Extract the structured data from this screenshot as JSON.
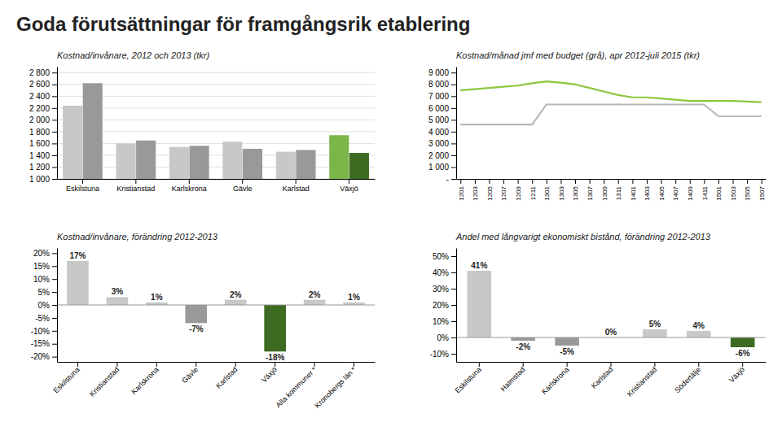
{
  "title": "Goda förutsättningar för framgångsrik etablering",
  "chart_data": [
    {
      "type": "bar",
      "title": "Kostnad/invånare, 2012 och 2013 (tkr)",
      "categories": [
        "Eskilstuna",
        "Kristianstad",
        "Karlskrona",
        "Gävle",
        "Karlstad",
        "Växjö"
      ],
      "series": [
        {
          "colors": [
            "#c8c8c8",
            "#c8c8c8",
            "#c8c8c8",
            "#c8c8c8",
            "#c8c8c8",
            "#7ab648"
          ],
          "values": [
            2240,
            1600,
            1540,
            1630,
            1460,
            1740
          ]
        },
        {
          "colors": [
            "#999999",
            "#999999",
            "#999999",
            "#999999",
            "#999999",
            "#3d6b22"
          ],
          "values": [
            2620,
            1650,
            1560,
            1510,
            1490,
            1440
          ]
        }
      ],
      "ylim": [
        1000,
        2900
      ],
      "yticks": [
        {
          "value": 1000,
          "label": "1 000"
        },
        {
          "value": 1200,
          "label": "1 200"
        },
        {
          "value": 1400,
          "label": "1 400"
        },
        {
          "value": 1600,
          "label": "1 600"
        },
        {
          "value": 1800,
          "label": "1 800"
        },
        {
          "value": 2000,
          "label": "2 000"
        },
        {
          "value": 2200,
          "label": "2 200"
        },
        {
          "value": 2400,
          "label": "2 400"
        },
        {
          "value": 2600,
          "label": "2 600"
        },
        {
          "value": 2800,
          "label": "2 800"
        }
      ],
      "grid": true
    },
    {
      "type": "line",
      "title": "Kostnad/månad jmf med budget (grå), apr 2012-juli 2015 (tkr)",
      "categories": [
        "1201",
        "1203",
        "1205",
        "1207",
        "1209",
        "1211",
        "1301",
        "1303",
        "1305",
        "1307",
        "1309",
        "1311",
        "1401",
        "1403",
        "1405",
        "1407",
        "1409",
        "1411",
        "1501",
        "1503",
        "1505",
        "1507"
      ],
      "series": [
        {
          "color": "#8dc63f",
          "values": [
            7500,
            7600,
            7700,
            7800,
            7900,
            8100,
            8250,
            8150,
            8000,
            7700,
            7400,
            7100,
            6900,
            6900,
            6800,
            6700,
            6600,
            6600,
            6600,
            6600,
            6550,
            6500
          ]
        },
        {
          "color": "#b8b8b8",
          "values": [
            4600,
            4600,
            4600,
            4600,
            4600,
            4600,
            6300,
            6300,
            6300,
            6300,
            6300,
            6300,
            6300,
            6300,
            6300,
            6300,
            6300,
            6300,
            5300,
            5300,
            5300,
            5300
          ]
        }
      ],
      "ylim": [
        0,
        9500
      ],
      "yticks": [
        {
          "value": 0,
          "label": "-"
        },
        {
          "value": 1000,
          "label": "1 000"
        },
        {
          "value": 2000,
          "label": "2 000"
        },
        {
          "value": 3000,
          "label": "3 000"
        },
        {
          "value": 4000,
          "label": "4 000"
        },
        {
          "value": 5000,
          "label": "5 000"
        },
        {
          "value": 6000,
          "label": "6 000"
        },
        {
          "value": 7000,
          "label": "7 000"
        },
        {
          "value": 8000,
          "label": "8 000"
        },
        {
          "value": 9000,
          "label": "9 000"
        }
      ],
      "grid": false
    },
    {
      "type": "bar",
      "title": "Kostnad/invånare, förändring 2012-2013",
      "categories": [
        "Eskilstuna",
        "Kristianstad",
        "Karlskrona",
        "Gävle",
        "Karlstad",
        "Växjö",
        "Alla kommuner *",
        "Kronobergs län *"
      ],
      "values": [
        17,
        3,
        1,
        -7,
        2,
        -18,
        2,
        1
      ],
      "value_labels": [
        "17%",
        "3%",
        "1%",
        "-7%",
        "2%",
        "-18%",
        "2%",
        "1%"
      ],
      "colors": [
        "#c8c8c8",
        "#c8c8c8",
        "#c8c8c8",
        "#999999",
        "#c8c8c8",
        "#3d6b22",
        "#c8c8c8",
        "#c8c8c8"
      ],
      "ylim": [
        -22,
        22
      ],
      "yticks": [
        {
          "value": -20,
          "label": "-20%"
        },
        {
          "value": -15,
          "label": "-15%"
        },
        {
          "value": -10,
          "label": "-10%"
        },
        {
          "value": -5,
          "label": "-5%"
        },
        {
          "value": 0,
          "label": "0%"
        },
        {
          "value": 5,
          "label": "5%"
        },
        {
          "value": 10,
          "label": "10%"
        },
        {
          "value": 15,
          "label": "15%"
        },
        {
          "value": 20,
          "label": "20%"
        }
      ],
      "grid": false,
      "data_labels": true
    },
    {
      "type": "bar",
      "title": "Andel med långvarigt ekonomiskt bistånd, förändring 2012-2013",
      "categories": [
        "Eskilstuna",
        "Halmstad",
        "Karlskrona",
        "Karlstad",
        "Kristianstad",
        "Södertälje",
        "Växjö"
      ],
      "values": [
        41,
        -2,
        -5,
        0,
        5,
        4,
        -6
      ],
      "value_labels": [
        "41%",
        "-2%",
        "-5%",
        "0%",
        "5%",
        "4%",
        "-6%"
      ],
      "colors": [
        "#c8c8c8",
        "#999999",
        "#999999",
        "#c8c8c8",
        "#c8c8c8",
        "#c8c8c8",
        "#3d6b22"
      ],
      "ylim": [
        -15,
        55
      ],
      "yticks": [
        {
          "value": -10,
          "label": "-10%"
        },
        {
          "value": 0,
          "label": "0%"
        },
        {
          "value": 10,
          "label": "10%"
        },
        {
          "value": 20,
          "label": "20%"
        },
        {
          "value": 30,
          "label": "30%"
        },
        {
          "value": 40,
          "label": "40%"
        },
        {
          "value": 50,
          "label": "50%"
        }
      ],
      "grid": false,
      "data_labels": true
    }
  ]
}
